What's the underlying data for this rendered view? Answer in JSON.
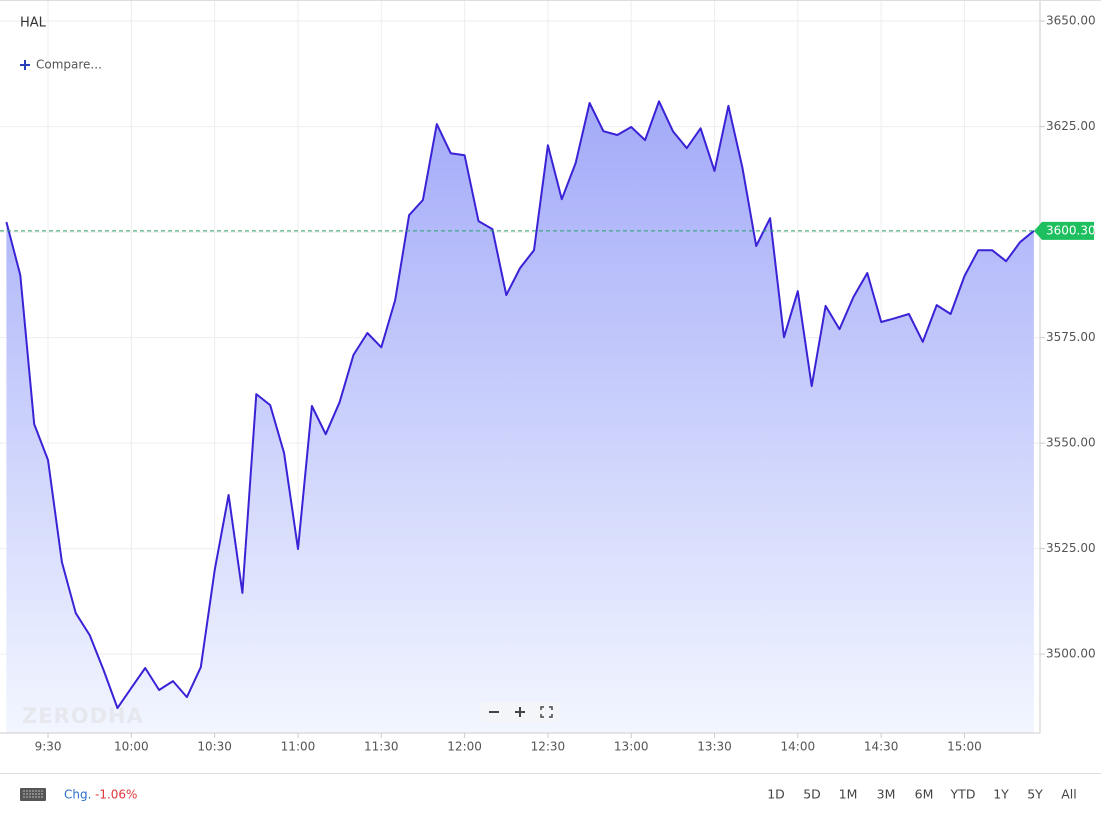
{
  "chart_data": {
    "type": "area",
    "title": "HAL",
    "compare_label": "Compare...",
    "watermark": "ZERODHA",
    "change_label": "Chg.",
    "change_value": "-1.06%",
    "ranges": [
      "1D",
      "5D",
      "1M",
      "3M",
      "6M",
      "YTD",
      "1Y",
      "5Y",
      "All"
    ],
    "x": [
      555,
      560,
      565,
      570,
      575,
      580,
      585,
      590,
      595,
      600,
      605,
      610,
      615,
      620,
      625,
      630,
      635,
      640,
      645,
      650,
      655,
      660,
      665,
      670,
      675,
      680,
      685,
      690,
      695,
      700,
      705,
      710,
      715,
      720,
      725,
      730,
      735,
      740,
      745,
      750,
      755,
      760,
      765,
      770,
      775,
      780,
      785,
      790,
      795,
      800,
      805,
      810,
      815,
      820,
      825,
      830,
      835,
      840,
      845,
      850,
      855,
      860,
      865,
      870,
      875,
      880,
      885,
      890,
      895,
      900,
      905,
      910,
      915,
      920,
      925
    ],
    "series": [
      {
        "name": "HAL",
        "color": "#3a22d6",
        "values": [
          3602.4,
          3589.8,
          3554.5,
          3546,
          3521.8,
          3509.7,
          3504.5,
          3496.2,
          3487.2,
          3492,
          3496.7,
          3491.5,
          3493.6,
          3489.8,
          3496.9,
          3519.9,
          3537.7,
          3514.5,
          3561.6,
          3559,
          3547.6,
          3524.9,
          3558.8,
          3552.1,
          3559.7,
          3570.9,
          3576.1,
          3572.7,
          3583.9,
          3604,
          3607.6,
          3625.6,
          3618.7,
          3618.2,
          3602.6,
          3600.7,
          3585.1,
          3591.5,
          3595.7,
          3620.6,
          3607.8,
          3616.4,
          3630.6,
          3623.9,
          3623,
          3624.9,
          3621.8,
          3631,
          3623.9,
          3619.9,
          3624.6,
          3614.5,
          3629.9,
          3615.4,
          3596.7,
          3603.3,
          3575.1,
          3586,
          3563.5,
          3582.5,
          3577,
          3584.6,
          3590.3,
          3578.7,
          3579.6,
          3580.6,
          3574,
          3582.7,
          3580.6,
          3589.6,
          3595.7,
          3595.7,
          3593.1,
          3597.6,
          3600.3
        ]
      }
    ],
    "last_price": {
      "value": 3600.3,
      "label": "3600.30"
    },
    "xlim": [
      552.7,
      927.2
    ],
    "xticks": [
      {
        "value": 570,
        "label": "9:30"
      },
      {
        "value": 600,
        "label": "10:00"
      },
      {
        "value": 630,
        "label": "10:30"
      },
      {
        "value": 660,
        "label": "11:00"
      },
      {
        "value": 690,
        "label": "11:30"
      },
      {
        "value": 720,
        "label": "12:00"
      },
      {
        "value": 750,
        "label": "12:30"
      },
      {
        "value": 780,
        "label": "13:00"
      },
      {
        "value": 810,
        "label": "13:30"
      },
      {
        "value": 840,
        "label": "14:00"
      },
      {
        "value": 870,
        "label": "14:30"
      },
      {
        "value": 900,
        "label": "15:00"
      }
    ],
    "ylim": [
      3481.3,
      3655
    ],
    "yticks": [
      {
        "value": 3500,
        "label": "3500.00"
      },
      {
        "value": 3525,
        "label": "3525.00"
      },
      {
        "value": 3550,
        "label": "3550.00"
      },
      {
        "value": 3575,
        "label": "3575.00"
      },
      {
        "value": 3600,
        "label": "3600.00"
      },
      {
        "value": 3625,
        "label": "3625.00"
      },
      {
        "value": 3650,
        "label": "3650.00"
      }
    ],
    "grid": true
  }
}
